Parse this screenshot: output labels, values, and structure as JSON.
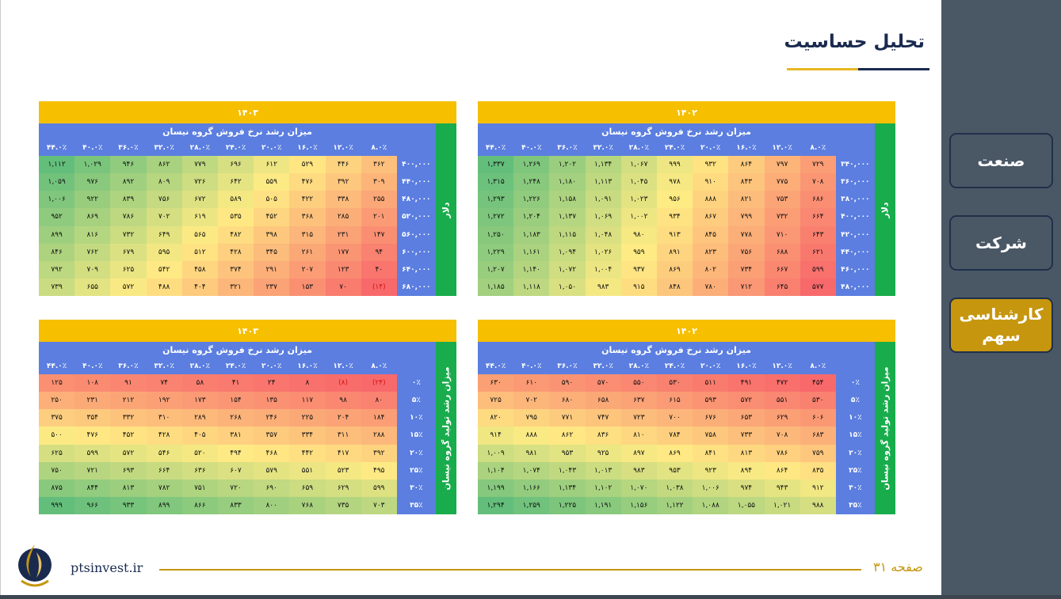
{
  "title": "تحلیل حساسیت",
  "footer": {
    "site": "ptsinvest.ir",
    "page": "صفحه ۳۱"
  },
  "nav": [
    {
      "label": "صنعت",
      "active": false
    },
    {
      "label": "شرکت",
      "active": false
    },
    {
      "label": "کارشناسی سهم",
      "active": true
    }
  ],
  "colors": {
    "accent": "#c6960e",
    "year_bar": "#f6bf00",
    "header_blue": "#5b7ee0",
    "side_green": "#18ac4c",
    "heat_low": "#f8696b",
    "heat_mid": "#ffeb84",
    "heat_high": "#63be7b",
    "negative": "#d41414"
  },
  "tables": [
    {
      "id": "top-right",
      "year": "۱۴۰۲",
      "side_label": "دلار",
      "col_title": "میزان رشد نرخ فروش گروه نیسان",
      "cols": [
        "۸.۰٪",
        "۱۲.۰٪",
        "۱۶.۰٪",
        "۲۰.۰٪",
        "۲۴.۰٪",
        "۲۸.۰٪",
        "۳۲.۰٪",
        "۳۶.۰٪",
        "۴۰.۰٪",
        "۴۴.۰٪"
      ],
      "rows": [
        {
          "label": "۳۴۰,۰۰۰",
          "cells": [
            "۷۲۹",
            "۷۹۷",
            "۸۶۴",
            "۹۳۲",
            "۹۹۹",
            "۱,۰۶۷",
            "۱,۱۳۴",
            "۱,۲۰۲",
            "۱,۲۶۹",
            "۱,۳۳۷"
          ]
        },
        {
          "label": "۳۶۰,۰۰۰",
          "cells": [
            "۷۰۸",
            "۷۷۵",
            "۸۴۳",
            "۹۱۰",
            "۹۷۸",
            "۱,۰۴۵",
            "۱,۱۱۳",
            "۱,۱۸۰",
            "۱,۲۴۸",
            "۱,۳۱۵"
          ]
        },
        {
          "label": "۳۸۰,۰۰۰",
          "cells": [
            "۶۸۶",
            "۷۵۳",
            "۸۲۱",
            "۸۸۸",
            "۹۵۶",
            "۱,۰۲۳",
            "۱,۰۹۱",
            "۱,۱۵۸",
            "۱,۲۲۶",
            "۱,۲۹۳"
          ]
        },
        {
          "label": "۴۰۰,۰۰۰",
          "cells": [
            "۶۶۴",
            "۷۳۲",
            "۷۹۹",
            "۸۶۷",
            "۹۳۴",
            "۱,۰۰۲",
            "۱,۰۶۹",
            "۱,۱۳۷",
            "۱,۲۰۴",
            "۱,۲۷۲"
          ]
        },
        {
          "label": "۴۲۰,۰۰۰",
          "cells": [
            "۶۴۳",
            "۷۱۰",
            "۷۷۸",
            "۸۴۵",
            "۹۱۳",
            "۹۸۰",
            "۱,۰۴۸",
            "۱,۱۱۵",
            "۱,۱۸۳",
            "۱,۲۵۰"
          ]
        },
        {
          "label": "۴۴۰,۰۰۰",
          "cells": [
            "۶۲۱",
            "۶۸۸",
            "۷۵۶",
            "۸۲۳",
            "۸۹۱",
            "۹۵۹",
            "۱,۰۲۶",
            "۱,۰۹۴",
            "۱,۱۶۱",
            "۱,۲۲۹"
          ]
        },
        {
          "label": "۴۶۰,۰۰۰",
          "cells": [
            "۵۹۹",
            "۶۶۷",
            "۷۳۴",
            "۸۰۲",
            "۸۶۹",
            "۹۳۷",
            "۱,۰۰۴",
            "۱,۰۷۲",
            "۱,۱۴۰",
            "۱,۲۰۷"
          ]
        },
        {
          "label": "۴۸۰,۰۰۰",
          "cells": [
            "۵۷۷",
            "۶۴۵",
            "۷۱۲",
            "۷۸۰",
            "۸۴۸",
            "۹۱۵",
            "۹۸۳",
            "۱,۰۵۰",
            "۱,۱۱۸",
            "۱,۱۸۵"
          ]
        }
      ]
    },
    {
      "id": "top-left",
      "year": "۱۴۰۳",
      "side_label": "دلار",
      "col_title": "میزان رشد نرخ فروش گروه نیسان",
      "cols": [
        "۸.۰٪",
        "۱۲.۰٪",
        "۱۶.۰٪",
        "۲۰.۰٪",
        "۲۴.۰٪",
        "۲۸.۰٪",
        "۳۲.۰٪",
        "۳۶.۰٪",
        "۴۰.۰٪",
        "۴۴.۰٪"
      ],
      "rows": [
        {
          "label": "۴۰۰,۰۰۰",
          "cells": [
            "۳۶۲",
            "۴۴۶",
            "۵۲۹",
            "۶۱۲",
            "۶۹۶",
            "۷۷۹",
            "۸۶۲",
            "۹۴۶",
            "۱,۰۲۹",
            "۱,۱۱۲"
          ]
        },
        {
          "label": "۴۴۰,۰۰۰",
          "cells": [
            "۳۰۹",
            "۳۹۲",
            "۴۷۶",
            "۵۵۹",
            "۶۴۲",
            "۷۲۶",
            "۸۰۹",
            "۸۹۲",
            "۹۷۶",
            "۱,۰۵۹"
          ]
        },
        {
          "label": "۴۸۰,۰۰۰",
          "cells": [
            "۲۵۵",
            "۳۳۸",
            "۴۲۲",
            "۵۰۵",
            "۵۸۹",
            "۶۷۲",
            "۷۵۶",
            "۸۳۹",
            "۹۲۲",
            "۱,۰۰۶"
          ]
        },
        {
          "label": "۵۲۰,۰۰۰",
          "cells": [
            "۲۰۱",
            "۲۸۵",
            "۳۶۸",
            "۴۵۲",
            "۵۳۵",
            "۶۱۹",
            "۷۰۲",
            "۷۸۶",
            "۸۶۹",
            "۹۵۲"
          ]
        },
        {
          "label": "۵۶۰,۰۰۰",
          "cells": [
            "۱۴۷",
            "۲۳۱",
            "۳۱۵",
            "۳۹۸",
            "۴۸۲",
            "۵۶۵",
            "۶۴۹",
            "۷۳۲",
            "۸۱۶",
            "۸۹۹"
          ]
        },
        {
          "label": "۶۰۰,۰۰۰",
          "cells": [
            "۹۴",
            "۱۷۷",
            "۲۶۱",
            "۳۴۵",
            "۴۲۸",
            "۵۱۲",
            "۵۹۵",
            "۶۷۹",
            "۷۶۲",
            "۸۴۶"
          ]
        },
        {
          "label": "۶۴۰,۰۰۰",
          "cells": [
            "۴۰",
            "۱۲۳",
            "۲۰۷",
            "۲۹۱",
            "۳۷۴",
            "۴۵۸",
            "۵۴۲",
            "۶۲۵",
            "۷۰۹",
            "۷۹۲"
          ]
        },
        {
          "label": "۶۸۰,۰۰۰",
          "cells": [
            "(۱۴)",
            "۷۰",
            "۱۵۳",
            "۲۳۷",
            "۳۲۱",
            "۴۰۴",
            "۴۸۸",
            "۵۷۲",
            "۶۵۵",
            "۷۳۹"
          ]
        }
      ]
    },
    {
      "id": "bottom-right",
      "year": "۱۴۰۲",
      "side_label": "میزان رشد تولید گروه نیسان",
      "col_title": "میزان رشد نرخ فروش گروه نیسان",
      "cols": [
        "۸.۰٪",
        "۱۲.۰٪",
        "۱۶.۰٪",
        "۲۰.۰٪",
        "۲۴.۰٪",
        "۲۸.۰٪",
        "۳۲.۰٪",
        "۳۶.۰٪",
        "۴۰.۰٪",
        "۴۴.۰٪"
      ],
      "rows": [
        {
          "label": "۰٪",
          "cells": [
            "۴۵۴",
            "۴۷۲",
            "۴۹۱",
            "۵۱۱",
            "۵۳۰",
            "۵۵۰",
            "۵۷۰",
            "۵۹۰",
            "۶۱۰",
            "۶۳۰"
          ]
        },
        {
          "label": "۵٪",
          "cells": [
            "۵۳۰",
            "۵۵۱",
            "۵۷۲",
            "۵۹۳",
            "۶۱۵",
            "۶۳۷",
            "۶۵۸",
            "۶۸۰",
            "۷۰۲",
            "۷۲۵"
          ]
        },
        {
          "label": "۱۰٪",
          "cells": [
            "۶۰۶",
            "۶۲۹",
            "۶۵۳",
            "۶۷۶",
            "۷۰۰",
            "۷۲۳",
            "۷۴۷",
            "۷۷۱",
            "۷۹۵",
            "۸۲۰"
          ]
        },
        {
          "label": "۱۵٪",
          "cells": [
            "۶۸۳",
            "۷۰۸",
            "۷۳۳",
            "۷۵۸",
            "۷۸۴",
            "۸۱۰",
            "۸۳۶",
            "۸۶۲",
            "۸۸۸",
            "۹۱۴"
          ]
        },
        {
          "label": "۲۰٪",
          "cells": [
            "۷۵۹",
            "۷۸۶",
            "۸۱۳",
            "۸۴۱",
            "۸۶۹",
            "۸۹۷",
            "۹۲۵",
            "۹۵۳",
            "۹۸۱",
            "۱,۰۰۹"
          ]
        },
        {
          "label": "۲۵٪",
          "cells": [
            "۸۳۵",
            "۸۶۴",
            "۸۹۴",
            "۹۲۳",
            "۹۵۳",
            "۹۸۳",
            "۱,۰۱۳",
            "۱,۰۴۳",
            "۱,۰۷۴",
            "۱,۱۰۴"
          ]
        },
        {
          "label": "۳۰٪",
          "cells": [
            "۹۱۲",
            "۹۴۳",
            "۹۷۴",
            "۱,۰۰۶",
            "۱,۰۳۸",
            "۱,۰۷۰",
            "۱,۱۰۲",
            "۱,۱۳۴",
            "۱,۱۶۶",
            "۱,۱۹۹"
          ]
        },
        {
          "label": "۳۵٪",
          "cells": [
            "۹۸۸",
            "۱,۰۲۱",
            "۱,۰۵۵",
            "۱,۰۸۸",
            "۱,۱۲۲",
            "۱,۱۵۶",
            "۱,۱۹۱",
            "۱,۲۲۵",
            "۱,۲۵۹",
            "۱,۲۹۴"
          ]
        }
      ]
    },
    {
      "id": "bottom-left",
      "year": "۱۴۰۳",
      "side_label": "میزان رشد تولید گروه نیسان",
      "col_title": "میزان رشد نرخ فروش گروه نیسان",
      "cols": [
        "۸.۰٪",
        "۱۲.۰٪",
        "۱۶.۰٪",
        "۲۰.۰٪",
        "۲۴.۰٪",
        "۲۸.۰٪",
        "۳۲.۰٪",
        "۳۶.۰٪",
        "۴۰.۰٪",
        "۴۴.۰٪"
      ],
      "rows": [
        {
          "label": "۰٪",
          "cells": [
            "(۲۴)",
            "(۸)",
            "۸",
            "۲۴",
            "۴۱",
            "۵۸",
            "۷۴",
            "۹۱",
            "۱۰۸",
            "۱۲۵"
          ]
        },
        {
          "label": "۵٪",
          "cells": [
            "۸۰",
            "۹۸",
            "۱۱۷",
            "۱۳۵",
            "۱۵۴",
            "۱۷۳",
            "۱۹۲",
            "۲۱۲",
            "۲۳۱",
            "۲۵۰"
          ]
        },
        {
          "label": "۱۰٪",
          "cells": [
            "۱۸۴",
            "۲۰۴",
            "۲۲۵",
            "۲۴۶",
            "۲۶۸",
            "۲۸۹",
            "۳۱۰",
            "۳۳۲",
            "۳۵۴",
            "۳۷۵"
          ]
        },
        {
          "label": "۱۵٪",
          "cells": [
            "۲۸۸",
            "۳۱۱",
            "۳۳۴",
            "۳۵۷",
            "۳۸۱",
            "۴۰۵",
            "۴۲۸",
            "۴۵۲",
            "۴۷۶",
            "۵۰۰"
          ]
        },
        {
          "label": "۲۰٪",
          "cells": [
            "۳۹۲",
            "۴۱۷",
            "۴۴۲",
            "۴۶۸",
            "۴۹۴",
            "۵۲۰",
            "۵۴۶",
            "۵۷۲",
            "۵۹۹",
            "۶۲۵"
          ]
        },
        {
          "label": "۲۵٪",
          "cells": [
            "۴۹۵",
            "۵۲۳",
            "۵۵۱",
            "۵۷۹",
            "۶۰۷",
            "۶۳۶",
            "۶۶۴",
            "۶۹۳",
            "۷۲۱",
            "۷۵۰"
          ]
        },
        {
          "label": "۳۰٪",
          "cells": [
            "۵۹۹",
            "۶۲۹",
            "۶۵۹",
            "۶۹۰",
            "۷۲۰",
            "۷۵۱",
            "۷۸۲",
            "۸۱۳",
            "۸۴۴",
            "۸۷۵"
          ]
        },
        {
          "label": "۳۵٪",
          "cells": [
            "۷۰۳",
            "۷۳۵",
            "۷۶۸",
            "۸۰۰",
            "۸۳۳",
            "۸۶۶",
            "۸۹۹",
            "۹۳۳",
            "۹۶۶",
            "۹۹۹"
          ]
        }
      ]
    }
  ]
}
